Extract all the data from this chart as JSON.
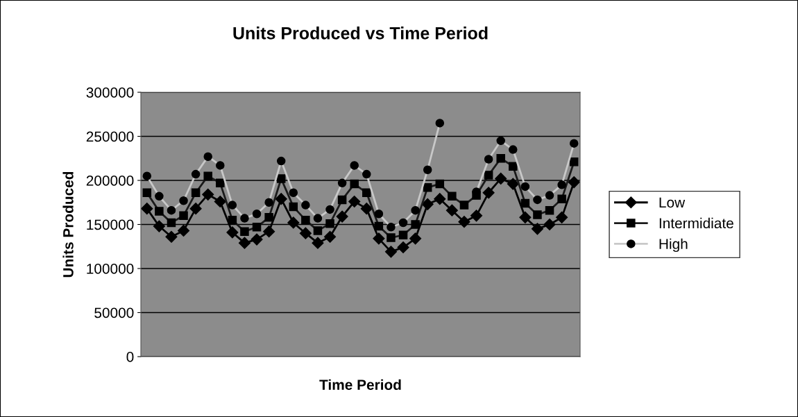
{
  "chart_data": {
    "type": "line",
    "title": "Units Produced vs Time Period",
    "xlabel": "Time Period",
    "ylabel": "Units Produced",
    "categories": [
      null,
      null,
      null,
      null,
      null,
      null,
      null,
      null,
      null,
      null,
      null,
      null,
      null,
      null,
      null,
      null,
      null,
      null,
      null,
      null,
      null,
      null,
      null,
      null,
      null,
      null,
      null,
      null,
      null,
      null,
      null,
      null,
      null,
      null,
      null,
      null
    ],
    "series": [
      {
        "name": "Low",
        "color": "#000000",
        "marker": "diamond",
        "values": [
          168000,
          148000,
          136000,
          143000,
          168000,
          184000,
          176000,
          141000,
          129000,
          133000,
          142000,
          179000,
          152000,
          140000,
          129000,
          136000,
          159000,
          176000,
          168000,
          134000,
          119000,
          124000,
          134000,
          173000,
          179000,
          166000,
          153000,
          160000,
          186000,
          202000,
          196000,
          158000,
          145000,
          150000,
          158000,
          198000
        ]
      },
      {
        "name": "Intermidiate",
        "color": "#1a1a1a",
        "marker": "square",
        "values": [
          186000,
          165000,
          152000,
          160000,
          186000,
          205000,
          197000,
          155000,
          142000,
          147000,
          158000,
          202000,
          170000,
          155000,
          143000,
          151000,
          178000,
          196000,
          186000,
          148000,
          135000,
          138000,
          150000,
          192000,
          196000,
          182000,
          172000,
          183000,
          206000,
          225000,
          216000,
          174000,
          161000,
          166000,
          179000,
          221000
        ]
      },
      {
        "name": "High",
        "color": "#c8c8c8",
        "marker": "circle",
        "values": [
          205000,
          182000,
          166000,
          177000,
          207000,
          227000,
          217000,
          172000,
          157000,
          162000,
          175000,
          222000,
          186000,
          172000,
          157000,
          167000,
          197000,
          217000,
          207000,
          162000,
          147000,
          152000,
          166000,
          212000,
          265000,
          null,
          null,
          187000,
          224000,
          245000,
          235000,
          193000,
          178000,
          183000,
          195000,
          242000
        ]
      }
    ],
    "ylim": [
      0,
      300000
    ],
    "yticks": [
      0,
      50000,
      100000,
      150000,
      200000,
      250000,
      300000
    ],
    "grid": "y",
    "legend": "right",
    "line_style": "solid"
  }
}
